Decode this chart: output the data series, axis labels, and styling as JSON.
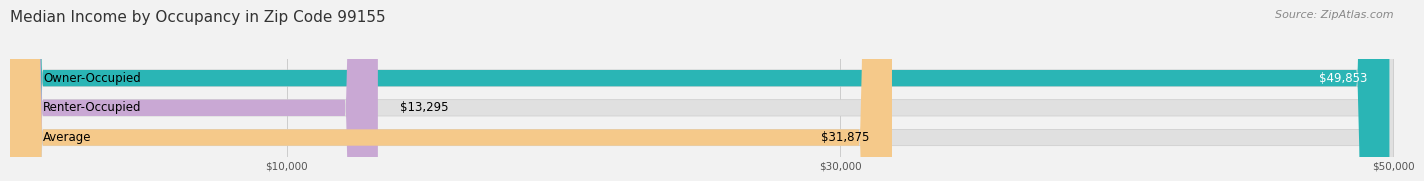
{
  "title": "Median Income by Occupancy in Zip Code 99155",
  "source": "Source: ZipAtlas.com",
  "categories": [
    "Owner-Occupied",
    "Renter-Occupied",
    "Average"
  ],
  "values": [
    49853,
    13295,
    31875
  ],
  "bar_colors": [
    "#2ab5b5",
    "#c9a8d4",
    "#f5c98a"
  ],
  "value_labels": [
    "$49,853",
    "$13,295",
    "$31,875"
  ],
  "xlim": [
    0,
    50000
  ],
  "xticks": [
    10000,
    30000,
    50000
  ],
  "xtick_labels": [
    "$10,000",
    "$30,000",
    "$50,000"
  ],
  "background_color": "#f2f2f2",
  "bar_bg_color": "#e0e0e0",
  "title_fontsize": 11,
  "source_fontsize": 8,
  "label_fontsize": 8.5,
  "value_fontsize": 8.5,
  "bar_height": 0.55
}
